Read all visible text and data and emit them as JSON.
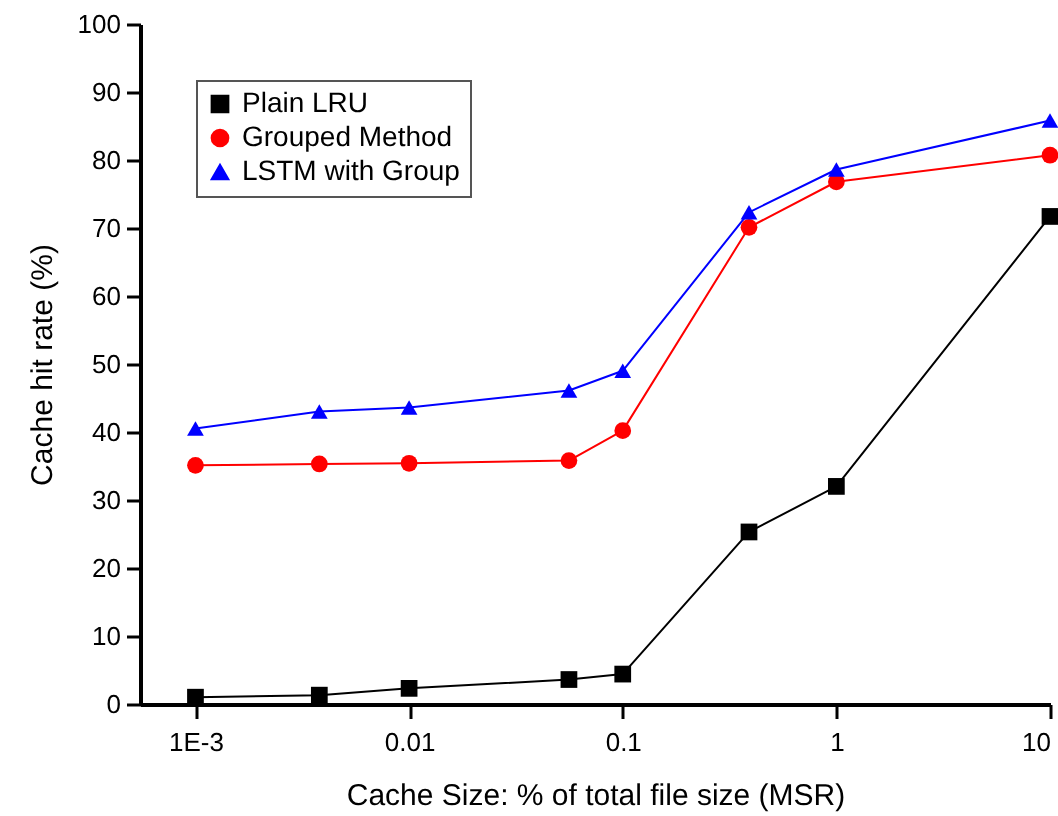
{
  "chart_data": {
    "type": "line",
    "xlabel": "Cache Size: % of total file size (MSR)",
    "ylabel": "Cache hit rate (%)",
    "log": "x",
    "xlim": [
      0.00055,
      10
    ],
    "xticks": [
      {
        "value": 0.001,
        "label": "1E-3"
      },
      0.01,
      0.1,
      1,
      10
    ],
    "ylim": [
      0,
      100
    ],
    "yticks": [
      0,
      10,
      20,
      30,
      40,
      50,
      60,
      70,
      80,
      90,
      100
    ],
    "grid": false,
    "legend": "top left",
    "x": [
      0.001,
      0.0038,
      0.01,
      0.056,
      0.1,
      0.39,
      1,
      10
    ],
    "series": [
      {
        "name": "Plain LRU",
        "color": "#000000",
        "marker": "square",
        "values": [
          1.0,
          1.3,
          2.3,
          3.6,
          4.4,
          25.3,
          32.0,
          71.7
        ]
      },
      {
        "name": "Grouped Method",
        "color": "#ff0000",
        "marker": "circle",
        "values": [
          35.1,
          35.3,
          35.4,
          35.8,
          40.2,
          70.1,
          76.8,
          80.7
        ]
      },
      {
        "name": "LSTM with Group",
        "color": "#0000ff",
        "marker": "triangle",
        "values": [
          40.5,
          43.0,
          43.6,
          46.1,
          49.0,
          72.3,
          78.6,
          85.8
        ]
      }
    ]
  }
}
